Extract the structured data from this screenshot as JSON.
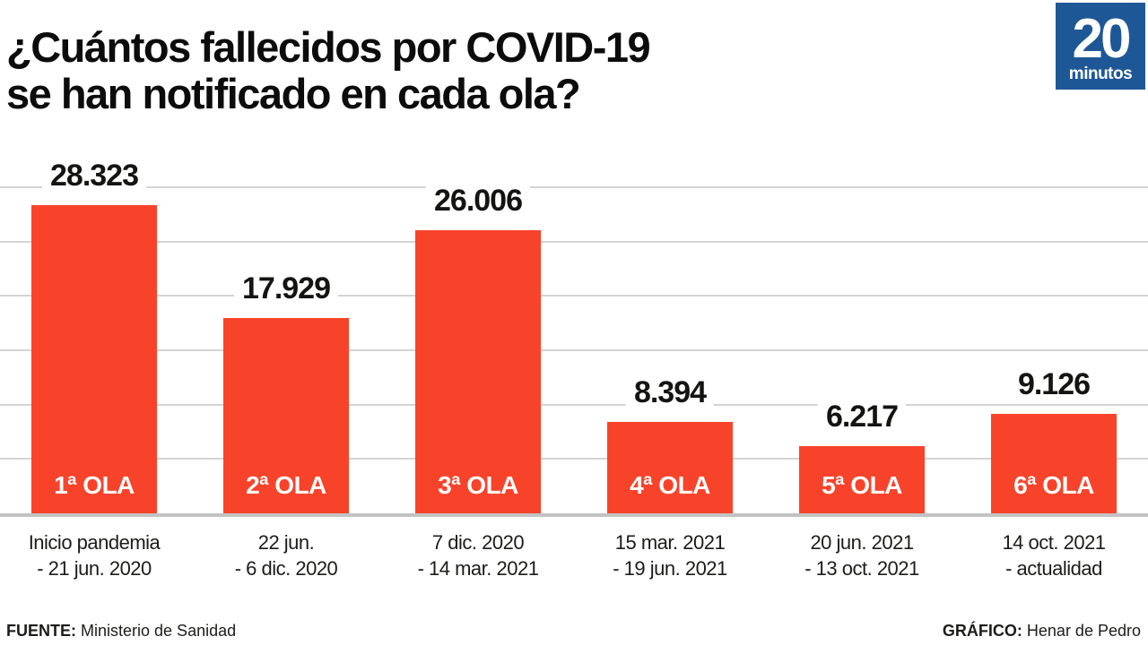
{
  "header": {
    "title_line1": "¿Cuántos fallecidos por COVID-19",
    "title_line2": "se han notificado en cada ola?"
  },
  "logo": {
    "number": "20",
    "name": "minutos",
    "background": "#1e5796",
    "color": "#ffffff"
  },
  "chart_data": {
    "type": "bar",
    "title": "¿Cuántos fallecidos por COVID-19 se han notificado en cada ola?",
    "categories": [
      "1ª OLA",
      "2ª OLA",
      "3ª OLA",
      "4ª OLA",
      "5ª OLA",
      "6ª OLA"
    ],
    "values": [
      28323,
      17929,
      26006,
      8394,
      6217,
      9126
    ],
    "value_labels": [
      "28.323",
      "17.929",
      "26.006",
      "8.394",
      "6.217",
      "9.126"
    ],
    "periods": [
      {
        "line1": "Inicio pandemia",
        "line2": "- 21 jun. 2020"
      },
      {
        "line1": "22 jun.",
        "line2": "- 6 dic. 2020"
      },
      {
        "line1": "7 dic. 2020",
        "line2": "- 14 mar. 2021"
      },
      {
        "line1": "15 mar. 2021",
        "line2": "- 19 jun. 2021"
      },
      {
        "line1": "20 jun. 2021",
        "line2": "- 13 oct. 2021"
      },
      {
        "line1": "14 oct. 2021",
        "line2": "- actualidad"
      }
    ],
    "xlabel": "",
    "ylabel": "",
    "ylim": [
      0,
      30000
    ],
    "gridline_step": 5000,
    "grid": true,
    "legend": false,
    "bar_color": "#f8432b",
    "gridline_color": "#d4d4d4",
    "baseline_color": "#c3c3c3",
    "value_label_color": "#141412",
    "category_label_color": "#ffffff"
  },
  "footer": {
    "source_label": "FUENTE:",
    "source_text": "Ministerio de Sanidad",
    "credit_label": "GRÁFICO:",
    "credit_text": "Henar de Pedro"
  }
}
